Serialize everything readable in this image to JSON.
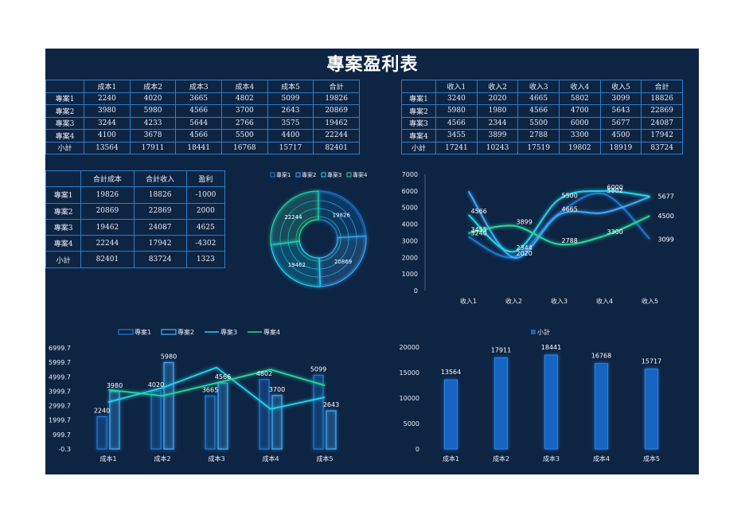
{
  "title": "專案盈利表",
  "cost_table": {
    "headers": [
      "",
      "成本1",
      "成本2",
      "成本3",
      "成本4",
      "成本5",
      "合計"
    ],
    "rows": [
      [
        "專案1",
        "2240",
        "4020",
        "3665",
        "4802",
        "5099",
        "19826"
      ],
      [
        "專案2",
        "3980",
        "5980",
        "4566",
        "3700",
        "2643",
        "20869"
      ],
      [
        "專案3",
        "3244",
        "4233",
        "5644",
        "2766",
        "3575",
        "19462"
      ],
      [
        "專案4",
        "4100",
        "3678",
        "4566",
        "5500",
        "4400",
        "22244"
      ],
      [
        "小計",
        "13564",
        "17911",
        "18441",
        "16768",
        "15717",
        "82401"
      ]
    ]
  },
  "revenue_table": {
    "headers": [
      "",
      "收入1",
      "收入2",
      "收入3",
      "收入4",
      "收入5",
      "合計"
    ],
    "rows": [
      [
        "專案1",
        "3240",
        "2020",
        "4665",
        "5802",
        "3099",
        "18826"
      ],
      [
        "專案2",
        "5980",
        "1980",
        "4566",
        "4700",
        "5643",
        "22869"
      ],
      [
        "專案3",
        "4566",
        "2344",
        "5500",
        "6000",
        "5677",
        "24087"
      ],
      [
        "專案4",
        "3455",
        "3899",
        "2788",
        "3300",
        "4500",
        "17942"
      ],
      [
        "小計",
        "17241",
        "10243",
        "17519",
        "19802",
        "18919",
        "83724"
      ]
    ]
  },
  "profit_table": {
    "headers": [
      "",
      "合計成本",
      "合計收入",
      "盈利"
    ],
    "rows": [
      [
        "專案1",
        "19826",
        "18826",
        "-1000"
      ],
      [
        "專案2",
        "20869",
        "22869",
        "2000"
      ],
      [
        "專案3",
        "19462",
        "24087",
        "4625"
      ],
      [
        "專案4",
        "22244",
        "17942",
        "-4302"
      ],
      [
        "小計",
        "82401",
        "83724",
        "1323"
      ]
    ]
  },
  "colors": {
    "background": "#0e2443",
    "table_border": "#2f7fc8",
    "proj1": "#1f78d1",
    "proj2": "#3fa9f5",
    "proj3": "#21d4ee",
    "proj4": "#27d79a",
    "bar_total": "#1565c0"
  },
  "chart_data": [
    {
      "type": "donut",
      "legend": [
        "專案1",
        "專案2",
        "專案3",
        "專案4"
      ],
      "legend_position": "top",
      "values": [
        19826,
        20869,
        19462,
        22244
      ],
      "labels": [
        "19826",
        "20869",
        "19462",
        "22244"
      ]
    },
    {
      "type": "line",
      "categories": [
        "收入1",
        "收入2",
        "收入3",
        "收入4",
        "收入5"
      ],
      "ylim": [
        0,
        7000
      ],
      "yticks": [
        "0",
        "1000",
        "2000",
        "3000",
        "4000",
        "5000",
        "6000",
        "7000"
      ],
      "series": [
        {
          "values": [
            3240,
            2020,
            4665,
            5802,
            3099
          ]
        },
        {
          "values": [
            5980,
            1980,
            4566,
            4700,
            5643
          ]
        },
        {
          "values": [
            4566,
            2344,
            5500,
            6000,
            5677
          ]
        },
        {
          "values": [
            3455,
            3899,
            2788,
            3300,
            4500
          ]
        }
      ],
      "point_labels": [
        {
          "series": 0,
          "index": 0,
          "text": "3240"
        },
        {
          "series": 3,
          "index": 0,
          "text": "3455"
        },
        {
          "series": 2,
          "index": 0,
          "text": "4566"
        },
        {
          "series": 0,
          "index": 1,
          "text": "2020"
        },
        {
          "series": 2,
          "index": 1,
          "text": "2344"
        },
        {
          "series": 3,
          "index": 1,
          "text": "3899"
        },
        {
          "series": 0,
          "index": 2,
          "text": "4665"
        },
        {
          "series": 2,
          "index": 2,
          "text": "5500"
        },
        {
          "series": 3,
          "index": 2,
          "text": "2788"
        },
        {
          "series": 0,
          "index": 3,
          "text": "5802"
        },
        {
          "series": 2,
          "index": 3,
          "text": "6000"
        },
        {
          "series": 3,
          "index": 3,
          "text": "3300"
        },
        {
          "series": 0,
          "index": 4,
          "text": "3099"
        },
        {
          "series": 2,
          "index": 4,
          "text": "5677"
        },
        {
          "series": 3,
          "index": 4,
          "text": "4500"
        }
      ]
    },
    {
      "type": "bar+line",
      "categories": [
        "成本1",
        "成本2",
        "成本3",
        "成本4",
        "成本5"
      ],
      "ylim": [
        -0.3,
        6999.7
      ],
      "yticks": [
        "-0.3",
        "999.7",
        "1999.7",
        "2999.7",
        "3999.7",
        "4999.7",
        "5999.7",
        "6999.7"
      ],
      "legend_position": "top",
      "series": [
        {
          "name": "專案1",
          "kind": "bar",
          "values": [
            2240,
            4020,
            3665,
            4802,
            5099
          ]
        },
        {
          "name": "專案2",
          "kind": "bar",
          "values": [
            3980,
            5980,
            4566,
            3700,
            2643
          ]
        },
        {
          "name": "專案3",
          "kind": "line",
          "values": [
            3244,
            4233,
            5644,
            2766,
            3575
          ]
        },
        {
          "name": "專案4",
          "kind": "line",
          "values": [
            4100,
            3678,
            4566,
            5500,
            4400
          ]
        }
      ],
      "bar_labels": [
        {
          "series": 0,
          "index": 0,
          "text": "2240"
        },
        {
          "series": 1,
          "index": 0,
          "text": "3980"
        },
        {
          "series": 0,
          "index": 1,
          "text": "4020"
        },
        {
          "series": 1,
          "index": 1,
          "text": "5980"
        },
        {
          "series": 0,
          "index": 2,
          "text": "3665"
        },
        {
          "series": 1,
          "index": 2,
          "text": "4566"
        },
        {
          "series": 0,
          "index": 3,
          "text": "4802"
        },
        {
          "series": 1,
          "index": 3,
          "text": "3700"
        },
        {
          "series": 0,
          "index": 4,
          "text": "5099"
        },
        {
          "series": 1,
          "index": 4,
          "text": "2643"
        }
      ]
    },
    {
      "type": "bar",
      "categories": [
        "成本1",
        "成本2",
        "成本3",
        "成本4",
        "成本5"
      ],
      "ylim": [
        0,
        20000
      ],
      "yticks": [
        "0",
        "5000",
        "10000",
        "15000",
        "20000"
      ],
      "legend_position": "top",
      "series": [
        {
          "name": "小計",
          "values": [
            13564,
            17911,
            18441,
            16768,
            15717
          ]
        }
      ]
    }
  ]
}
